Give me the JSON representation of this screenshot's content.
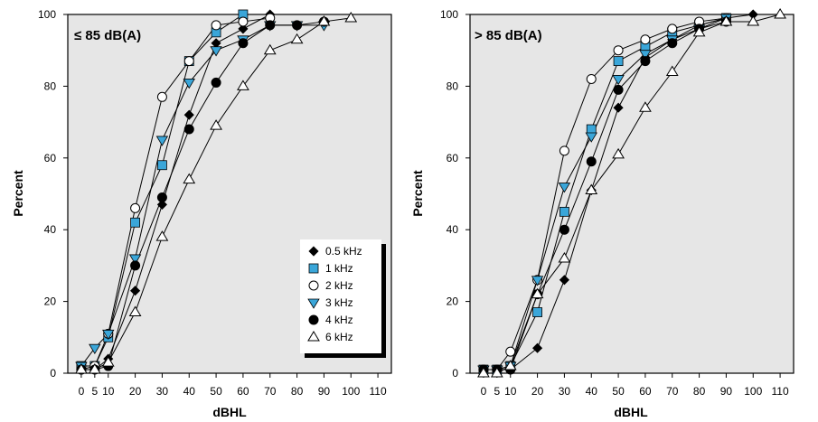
{
  "colors": {
    "plot_bg": "#e6e6e6",
    "frame": "#000000",
    "marker_blue": "#3aa6d9",
    "line": "#000000",
    "legend_bg": "#ffffff"
  },
  "legend": {
    "placement": "bottom-right of left panel",
    "entries": [
      {
        "label": "0.5 kHz",
        "marker": "diamond-filled"
      },
      {
        "label": "1 kHz",
        "marker": "square-blue"
      },
      {
        "label": "2 kHz",
        "marker": "circle-open"
      },
      {
        "label": "3 kHz",
        "marker": "triangle-down-blue"
      },
      {
        "label": "4 kHz",
        "marker": "circle-filled"
      },
      {
        "label": "6 kHz",
        "marker": "triangle-up-open"
      }
    ]
  },
  "chart_data": [
    {
      "type": "line",
      "title": "≤ 85 dB(A)",
      "xlabel": "dBHL",
      "ylabel": "Percent",
      "xlim": [
        -5,
        115
      ],
      "ylim": [
        0,
        100
      ],
      "x_ticks": [
        0,
        5,
        10,
        20,
        30,
        40,
        50,
        60,
        70,
        80,
        90,
        100,
        110
      ],
      "y_ticks": [
        0,
        20,
        40,
        60,
        80,
        100
      ],
      "grid": false,
      "series": [
        {
          "name": "0.5 kHz",
          "marker": "diamond-filled",
          "points": [
            [
              0,
              1
            ],
            [
              5,
              1
            ],
            [
              10,
              4
            ],
            [
              20,
              23
            ],
            [
              30,
              47
            ],
            [
              40,
              72
            ],
            [
              50,
              92
            ],
            [
              60,
              96
            ],
            [
              70,
              100
            ]
          ]
        },
        {
          "name": "1 kHz",
          "marker": "square-blue",
          "points": [
            [
              0,
              2
            ],
            [
              5,
              2
            ],
            [
              10,
              10
            ],
            [
              20,
              42
            ],
            [
              30,
              58
            ],
            [
              40,
              87
            ],
            [
              50,
              95
            ],
            [
              60,
              100
            ]
          ]
        },
        {
          "name": "2 kHz",
          "marker": "circle-open",
          "points": [
            [
              0,
              1
            ],
            [
              5,
              2
            ],
            [
              10,
              11
            ],
            [
              20,
              46
            ],
            [
              30,
              77
            ],
            [
              40,
              87
            ],
            [
              50,
              97
            ],
            [
              60,
              98
            ],
            [
              70,
              99
            ]
          ]
        },
        {
          "name": "3 kHz",
          "marker": "triangle-down-blue",
          "points": [
            [
              0,
              2
            ],
            [
              5,
              7
            ],
            [
              10,
              11
            ],
            [
              20,
              32
            ],
            [
              30,
              65
            ],
            [
              40,
              81
            ],
            [
              50,
              90
            ],
            [
              60,
              93
            ],
            [
              70,
              97
            ],
            [
              80,
              97
            ],
            [
              90,
              97
            ]
          ]
        },
        {
          "name": "4 kHz",
          "marker": "circle-filled",
          "points": [
            [
              0,
              1
            ],
            [
              5,
              1
            ],
            [
              10,
              2
            ],
            [
              20,
              30
            ],
            [
              30,
              49
            ],
            [
              40,
              68
            ],
            [
              50,
              81
            ],
            [
              60,
              92
            ],
            [
              70,
              97
            ],
            [
              80,
              97
            ],
            [
              90,
              98
            ]
          ]
        },
        {
          "name": "6 kHz",
          "marker": "triangle-up-open",
          "points": [
            [
              0,
              1
            ],
            [
              5,
              1
            ],
            [
              10,
              3
            ],
            [
              20,
              17
            ],
            [
              30,
              38
            ],
            [
              40,
              54
            ],
            [
              50,
              69
            ],
            [
              60,
              80
            ],
            [
              70,
              90
            ],
            [
              80,
              93
            ],
            [
              90,
              98
            ],
            [
              100,
              99
            ]
          ]
        }
      ]
    },
    {
      "type": "line",
      "title": "> 85 dB(A)",
      "xlabel": "dBHL",
      "ylabel": "Percent",
      "xlim": [
        -5,
        115
      ],
      "ylim": [
        0,
        100
      ],
      "x_ticks": [
        0,
        5,
        10,
        20,
        30,
        40,
        50,
        60,
        70,
        80,
        90,
        100,
        110
      ],
      "y_ticks": [
        0,
        20,
        40,
        60,
        80,
        100
      ],
      "grid": false,
      "series": [
        {
          "name": "0.5 kHz",
          "marker": "diamond-filled",
          "points": [
            [
              0,
              1
            ],
            [
              5,
              1
            ],
            [
              10,
              1
            ],
            [
              20,
              7
            ],
            [
              30,
              26
            ],
            [
              40,
              51
            ],
            [
              50,
              74
            ],
            [
              60,
              88
            ],
            [
              70,
              93
            ],
            [
              80,
              97
            ],
            [
              90,
              99
            ],
            [
              100,
              100
            ]
          ]
        },
        {
          "name": "1 kHz",
          "marker": "square-blue",
          "points": [
            [
              0,
              1
            ],
            [
              5,
              1
            ],
            [
              10,
              2
            ],
            [
              20,
              17
            ],
            [
              30,
              45
            ],
            [
              40,
              68
            ],
            [
              50,
              87
            ],
            [
              60,
              91
            ],
            [
              70,
              95
            ],
            [
              80,
              97
            ],
            [
              90,
              99
            ]
          ]
        },
        {
          "name": "2 kHz",
          "marker": "circle-open",
          "points": [
            [
              0,
              1
            ],
            [
              5,
              1
            ],
            [
              10,
              6
            ],
            [
              20,
              26
            ],
            [
              30,
              62
            ],
            [
              40,
              82
            ],
            [
              50,
              90
            ],
            [
              60,
              93
            ],
            [
              70,
              96
            ],
            [
              80,
              98
            ],
            [
              90,
              99
            ]
          ]
        },
        {
          "name": "3 kHz",
          "marker": "triangle-down-blue",
          "points": [
            [
              0,
              1
            ],
            [
              5,
              1
            ],
            [
              10,
              2
            ],
            [
              20,
              26
            ],
            [
              30,
              52
            ],
            [
              40,
              66
            ],
            [
              50,
              82
            ],
            [
              60,
              89
            ],
            [
              70,
              93
            ],
            [
              80,
              96
            ],
            [
              90,
              99
            ]
          ]
        },
        {
          "name": "4 kHz",
          "marker": "circle-filled",
          "points": [
            [
              0,
              1
            ],
            [
              5,
              1
            ],
            [
              10,
              1
            ],
            [
              20,
              22
            ],
            [
              30,
              40
            ],
            [
              40,
              59
            ],
            [
              50,
              79
            ],
            [
              60,
              87
            ],
            [
              70,
              92
            ],
            [
              80,
              96
            ],
            [
              90,
              98
            ]
          ]
        },
        {
          "name": "6 kHz",
          "marker": "triangle-up-open",
          "points": [
            [
              0,
              0
            ],
            [
              5,
              0
            ],
            [
              10,
              2
            ],
            [
              20,
              22
            ],
            [
              30,
              32
            ],
            [
              40,
              51
            ],
            [
              50,
              61
            ],
            [
              60,
              74
            ],
            [
              70,
              84
            ],
            [
              80,
              95
            ],
            [
              90,
              98
            ],
            [
              100,
              98
            ],
            [
              110,
              100
            ]
          ]
        }
      ]
    }
  ]
}
